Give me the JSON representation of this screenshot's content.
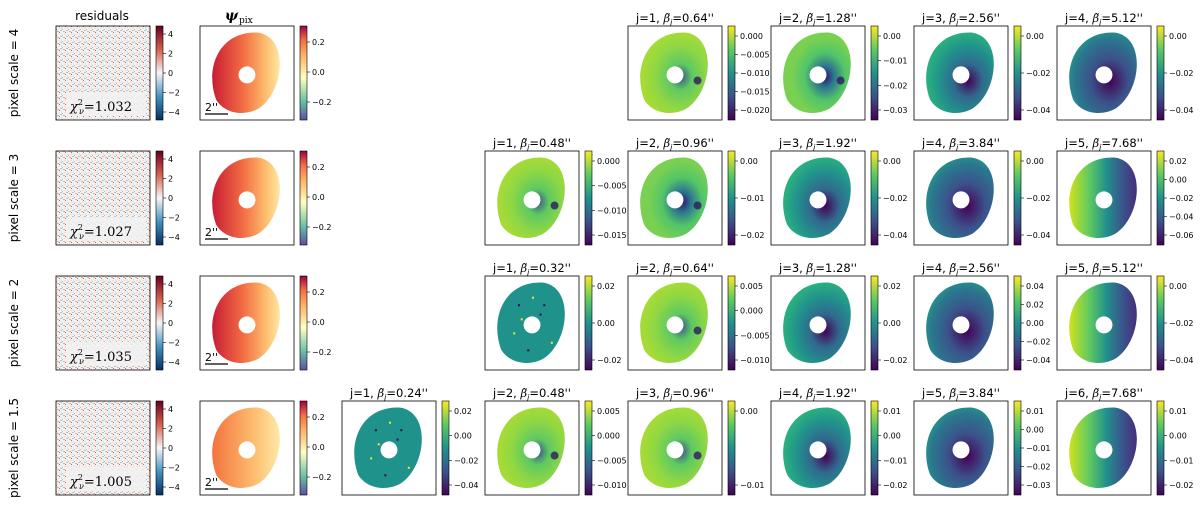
{
  "figure": {
    "col_header_residuals": "residuals",
    "col_header_psi": "ψ",
    "col_header_psi_sub": "pix",
    "scale_bar_label": "2''",
    "res_ticks": [
      "4",
      "2",
      "0",
      "−2",
      "−4"
    ],
    "psi_ticks": [
      "0.2",
      "0.0",
      "−0.2"
    ]
  },
  "rows": [
    {
      "label": "pixel scale = 4",
      "chi_value": "=1.032",
      "panels": [
        {
          "title_j": "j=1, ",
          "title_beta": "=0.64''",
          "ticks": [
            "0.000",
            "−0.005",
            "−0.010",
            "−0.015",
            "−0.020"
          ],
          "feature": "spots"
        },
        {
          "title_j": "j=2, ",
          "title_beta": "=1.28''",
          "ticks": [
            "0.00",
            "−0.01",
            "−0.02",
            "−0.03"
          ],
          "feature": "spot"
        },
        {
          "title_j": "j=3, ",
          "title_beta": "=2.56''",
          "ticks": [
            "0.00",
            "−0.02",
            "−0.04"
          ],
          "feature": "blob"
        },
        {
          "title_j": "j=4, ",
          "title_beta": "=5.12''",
          "ticks": [
            "0.00",
            "−0.02",
            "−0.04"
          ],
          "feature": "blob-large"
        }
      ]
    },
    {
      "label": "pixel scale = 3",
      "chi_value": "=1.027",
      "panels": [
        {
          "title_j": "j=1, ",
          "title_beta": "=0.48''",
          "ticks": [
            "0.000",
            "−0.005",
            "−0.010",
            "−0.015"
          ],
          "feature": "spots"
        },
        {
          "title_j": "j=2, ",
          "title_beta": "=0.96''",
          "ticks": [
            "0.00",
            "−0.01",
            "−0.02"
          ],
          "feature": "spot"
        },
        {
          "title_j": "j=3, ",
          "title_beta": "=1.92''",
          "ticks": [
            "0.00",
            "−0.02",
            "−0.04"
          ],
          "feature": "blob"
        },
        {
          "title_j": "j=4, ",
          "title_beta": "=3.84''",
          "ticks": [
            "0.00",
            "−0.02",
            "−0.04"
          ],
          "feature": "blob-large"
        },
        {
          "title_j": "j=5, ",
          "title_beta": "=7.68''",
          "ticks": [
            "0.02",
            "0.00",
            "−0.02",
            "−0.04",
            "−0.06"
          ],
          "feature": "half"
        }
      ]
    },
    {
      "label": "pixel scale = 2",
      "chi_value": "=1.035",
      "panels": [
        {
          "title_j": "j=1, ",
          "title_beta": "=0.32''",
          "ticks": [
            "0.02",
            "0.00",
            "−0.02"
          ],
          "feature": "dots"
        },
        {
          "title_j": "j=2, ",
          "title_beta": "=0.64''",
          "ticks": [
            "0.005",
            "0.000",
            "−0.005",
            "−0.010"
          ],
          "feature": "spots"
        },
        {
          "title_j": "j=3, ",
          "title_beta": "=1.28''",
          "ticks": [
            "0.02",
            "0.00",
            "−0.02"
          ],
          "feature": "blob"
        },
        {
          "title_j": "j=4, ",
          "title_beta": "=2.56''",
          "ticks": [
            "0.04",
            "0.02",
            "0.00",
            "−0.02",
            "−0.04"
          ],
          "feature": "blob-large"
        },
        {
          "title_j": "j=5, ",
          "title_beta": "=5.12''",
          "ticks": [
            "0.00",
            "−0.02",
            "−0.04"
          ],
          "feature": "half"
        }
      ]
    },
    {
      "label": "pixel scale = 1.5",
      "chi_value": "=1.005",
      "panels": [
        {
          "title_j": "j=1, ",
          "title_beta": "=0.24''",
          "ticks": [
            "0.02",
            "0.00",
            "−0.02",
            "−0.04"
          ],
          "feature": "dots"
        },
        {
          "title_j": "j=2, ",
          "title_beta": "=0.48''",
          "ticks": [
            "0.005",
            "0.000",
            "−0.005",
            "−0.010"
          ],
          "feature": "spots"
        },
        {
          "title_j": "j=3, ",
          "title_beta": "=0.96''",
          "ticks": [
            "0.00",
            "−0.01"
          ],
          "feature": "spots"
        },
        {
          "title_j": "j=4, ",
          "title_beta": "=1.92''",
          "ticks": [
            "0.01",
            "0.00",
            "−0.01",
            "−0.02"
          ],
          "feature": "blob"
        },
        {
          "title_j": "j=5, ",
          "title_beta": "=3.84''",
          "ticks": [
            "0.01",
            "0.00",
            "−0.01",
            "−0.02",
            "−0.03"
          ],
          "feature": "blob-large"
        },
        {
          "title_j": "j=6, ",
          "title_beta": "=7.68''",
          "ticks": [
            "0.01",
            "0.00",
            "−0.01",
            "−0.02"
          ],
          "feature": "half"
        }
      ]
    }
  ],
  "colors": {
    "viridis": [
      "#440154",
      "#3b528b",
      "#21918c",
      "#5ec962",
      "#fde725"
    ],
    "rdbu": [
      "#053061",
      "#2166ac",
      "#f7f7f7",
      "#d6604d",
      "#67001f"
    ],
    "spectral": [
      "#5e4fa2",
      "#66c2a5",
      "#ffffbf",
      "#f46d43",
      "#9e0142"
    ]
  }
}
